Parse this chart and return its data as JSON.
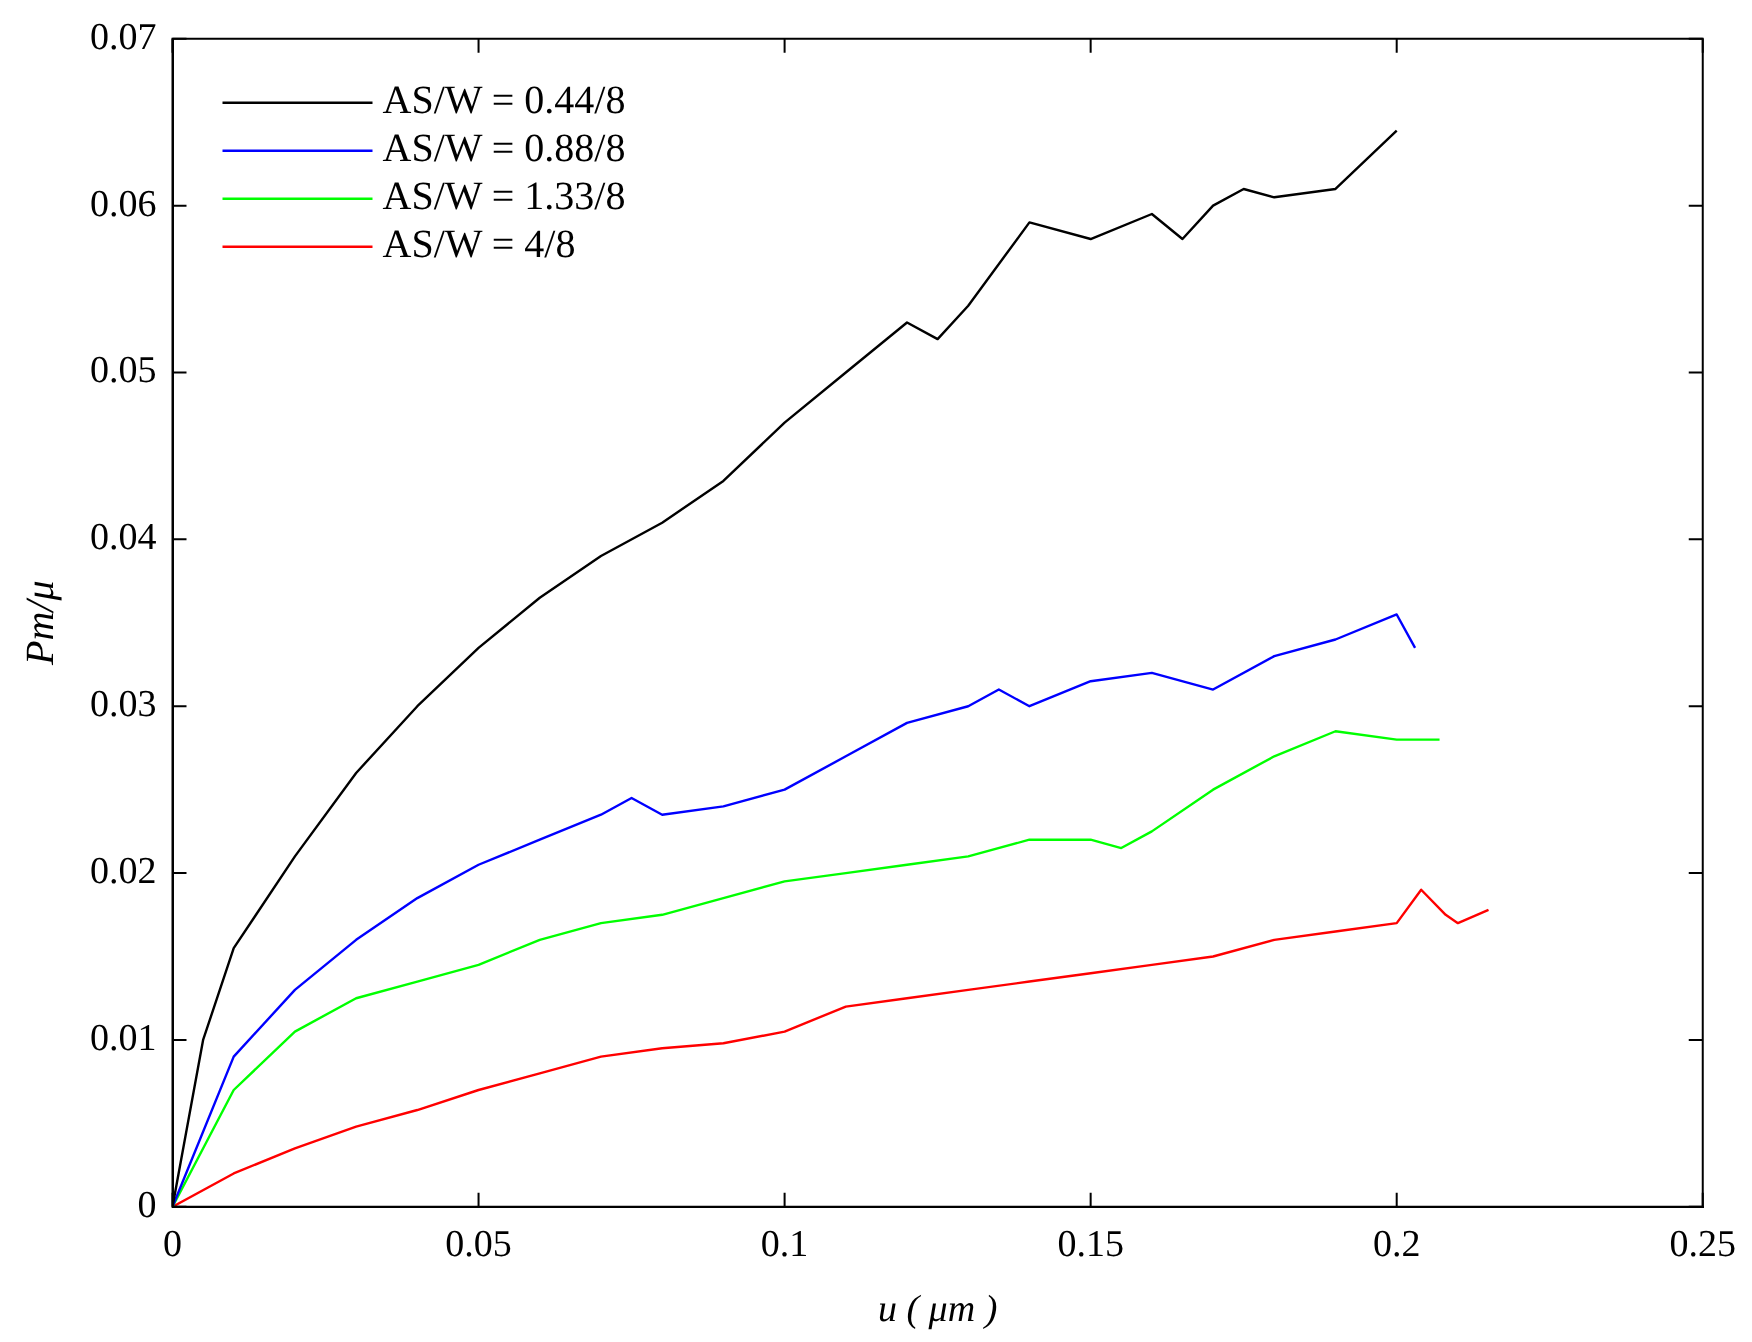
{
  "chart_data": {
    "type": "line",
    "xlabel": "u ( μm )",
    "ylabel": "Pm/μ",
    "xlim": [
      0,
      0.25
    ],
    "xticks": [
      0,
      0.05,
      0.1,
      0.15,
      0.2,
      0.25
    ],
    "ylim": [
      0,
      0.07
    ],
    "yticks": [
      0,
      0.01,
      0.02,
      0.03,
      0.04,
      0.05,
      0.06,
      0.07
    ],
    "grid": false,
    "legend": "top left",
    "marker": "none",
    "line_style": "solid",
    "series": [
      {
        "name": "AS/W = 0.44/8",
        "color": "#000000",
        "x": [
          0,
          0.005,
          0.01,
          0.02,
          0.03,
          0.04,
          0.05,
          0.06,
          0.07,
          0.08,
          0.09,
          0.1,
          0.11,
          0.12,
          0.125,
          0.13,
          0.14,
          0.15,
          0.16,
          0.165,
          0.17,
          0.175,
          0.18,
          0.19,
          0.2
        ],
        "values": [
          0,
          0.01,
          0.0155,
          0.021,
          0.026,
          0.03,
          0.0335,
          0.0365,
          0.039,
          0.041,
          0.0435,
          0.047,
          0.05,
          0.053,
          0.052,
          0.054,
          0.059,
          0.058,
          0.0595,
          0.058,
          0.06,
          0.061,
          0.0605,
          0.061,
          0.0645
        ]
      },
      {
        "name": "AS/W = 0.88/8",
        "color": "#0000ff",
        "x": [
          0,
          0.01,
          0.02,
          0.03,
          0.04,
          0.05,
          0.06,
          0.07,
          0.075,
          0.08,
          0.09,
          0.1,
          0.11,
          0.12,
          0.13,
          0.135,
          0.14,
          0.15,
          0.16,
          0.17,
          0.18,
          0.19,
          0.2,
          0.203
        ],
        "values": [
          0,
          0.009,
          0.013,
          0.016,
          0.0185,
          0.0205,
          0.022,
          0.0235,
          0.0245,
          0.0235,
          0.024,
          0.025,
          0.027,
          0.029,
          0.03,
          0.031,
          0.03,
          0.0315,
          0.032,
          0.031,
          0.033,
          0.034,
          0.0355,
          0.0335
        ]
      },
      {
        "name": "AS/W = 1.33/8",
        "color": "#00ff00",
        "x": [
          0,
          0.01,
          0.02,
          0.03,
          0.04,
          0.05,
          0.06,
          0.07,
          0.08,
          0.09,
          0.1,
          0.11,
          0.12,
          0.13,
          0.14,
          0.15,
          0.155,
          0.16,
          0.17,
          0.18,
          0.19,
          0.2,
          0.207
        ],
        "values": [
          0,
          0.007,
          0.0105,
          0.0125,
          0.0135,
          0.0145,
          0.016,
          0.017,
          0.0175,
          0.0185,
          0.0195,
          0.02,
          0.0205,
          0.021,
          0.022,
          0.022,
          0.0215,
          0.0225,
          0.025,
          0.027,
          0.0285,
          0.028,
          0.028
        ]
      },
      {
        "name": "AS/W = 4/8",
        "color": "#ff0000",
        "x": [
          0,
          0.01,
          0.02,
          0.03,
          0.04,
          0.05,
          0.06,
          0.07,
          0.08,
          0.09,
          0.1,
          0.11,
          0.12,
          0.13,
          0.14,
          0.15,
          0.16,
          0.17,
          0.18,
          0.19,
          0.2,
          0.204,
          0.208,
          0.21,
          0.215
        ],
        "values": [
          0,
          0.002,
          0.0035,
          0.0048,
          0.0058,
          0.007,
          0.008,
          0.009,
          0.0095,
          0.0098,
          0.0105,
          0.012,
          0.0125,
          0.013,
          0.0135,
          0.014,
          0.0145,
          0.015,
          0.016,
          0.0165,
          0.017,
          0.019,
          0.0175,
          0.017,
          0.0178
        ]
      }
    ]
  }
}
